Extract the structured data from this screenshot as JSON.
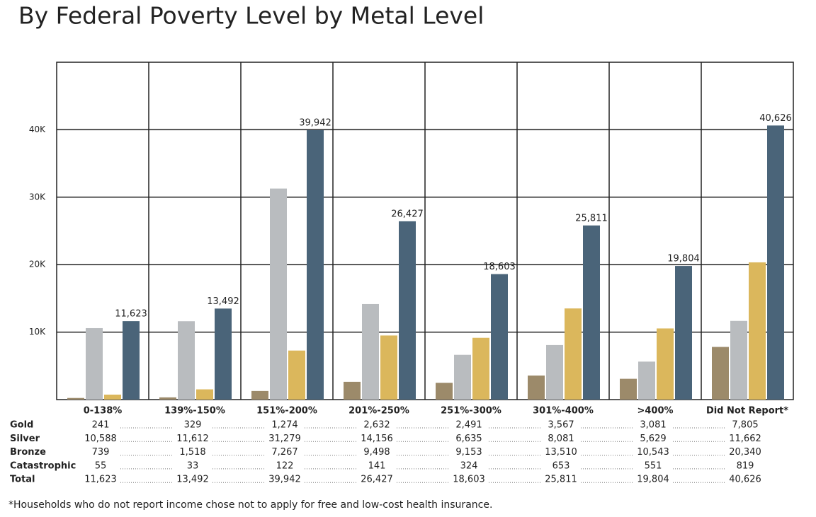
{
  "chart_data": {
    "type": "bar",
    "title": "By Federal Poverty Level by Metal Level",
    "footnote": "*Households who do not report income chose not to apply for free and low-cost health insurance.",
    "categories": [
      "0-138%",
      "139%-150%",
      "151%-200%",
      "201%-250%",
      "251%-300%",
      "301%-400%",
      ">400%",
      "Did Not Report*"
    ],
    "series": [
      {
        "name": "Gold",
        "color": "#9c8a6a",
        "label_color": "#d9b65a",
        "show_bar": true,
        "values": [
          241,
          329,
          1274,
          2632,
          2491,
          3567,
          3081,
          7805
        ],
        "value_labels": [
          "241",
          "329",
          "1,274",
          "2,632",
          "2,491",
          "3,567",
          "3,081",
          "7,805"
        ]
      },
      {
        "name": "Silver",
        "color": "#b9bcbf",
        "label_color": "#b9bcbf",
        "show_bar": true,
        "values": [
          10588,
          11612,
          31279,
          14156,
          6635,
          8081,
          5629,
          11662
        ],
        "value_labels": [
          "10,588",
          "11,612",
          "31,279",
          "14,156",
          "6,635",
          "8,081",
          "5,629",
          "11,662"
        ]
      },
      {
        "name": "Bronze",
        "color": "#dbb75c",
        "label_color": "#9c8a6a",
        "show_bar": true,
        "values": [
          739,
          1518,
          7267,
          9498,
          9153,
          13510,
          10543,
          20340
        ],
        "value_labels": [
          "739",
          "1,518",
          "7,267",
          "9,498",
          "9,153",
          "13,510",
          "10,543",
          "20,340"
        ]
      },
      {
        "name": "Catastrophic",
        "color": "#4fb0c0",
        "label_color": "#4fb0c0",
        "show_bar": false,
        "values": [
          55,
          33,
          122,
          141,
          324,
          653,
          551,
          819
        ],
        "value_labels": [
          "55",
          "33",
          "122",
          "141",
          "324",
          "653",
          "551",
          "819"
        ]
      },
      {
        "name": "Total",
        "color": "#4a6479",
        "label_color": "#3e5870",
        "show_bar": true,
        "bar_labels": true,
        "values": [
          11623,
          13492,
          39942,
          26427,
          18603,
          25811,
          19804,
          40626
        ],
        "value_labels": [
          "11,623",
          "13,492",
          "39,942",
          "26,427",
          "18,603",
          "25,811",
          "19,804",
          "40,626"
        ]
      }
    ],
    "ylim": [
      0,
      50000
    ],
    "yticks": [
      {
        "value": 10000,
        "label": "10K"
      },
      {
        "value": 20000,
        "label": "20K"
      },
      {
        "value": 30000,
        "label": "30K"
      },
      {
        "value": 40000,
        "label": "40K"
      }
    ],
    "grid": true
  }
}
